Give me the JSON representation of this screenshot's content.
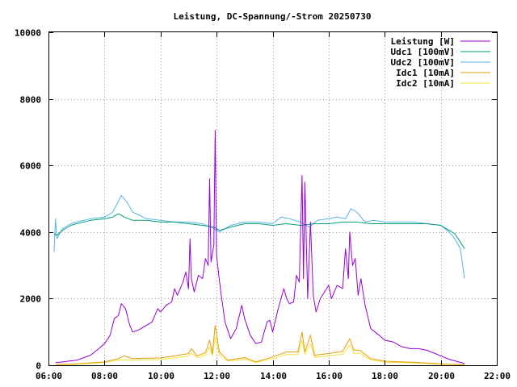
{
  "chart_data": {
    "type": "line",
    "title": "Leistung, DC-Spannung/-Strom 20250730",
    "xlabel": "",
    "ylabel": "",
    "x_ticks": [
      "06:00",
      "08:00",
      "10:00",
      "12:00",
      "14:00",
      "16:00",
      "18:00",
      "20:00",
      "22:00"
    ],
    "y_ticks": [
      "0",
      "2000",
      "4000",
      "6000",
      "8000",
      "10000"
    ],
    "xlim": [
      6,
      22
    ],
    "ylim": [
      0,
      10000
    ],
    "grid": true,
    "legend_position": "top-right",
    "series": [
      {
        "name": "Leistung [W]",
        "color": "#9400d3",
        "points": [
          [
            6.25,
            80
          ],
          [
            6.5,
            100
          ],
          [
            7,
            150
          ],
          [
            7.5,
            300
          ],
          [
            7.8,
            500
          ],
          [
            8,
            650
          ],
          [
            8.2,
            900
          ],
          [
            8.35,
            1400
          ],
          [
            8.5,
            1500
          ],
          [
            8.6,
            1850
          ],
          [
            8.75,
            1700
          ],
          [
            8.9,
            1200
          ],
          [
            9,
            1000
          ],
          [
            9.2,
            1050
          ],
          [
            9.5,
            1200
          ],
          [
            9.7,
            1300
          ],
          [
            9.9,
            1700
          ],
          [
            10,
            1600
          ],
          [
            10.2,
            1800
          ],
          [
            10.4,
            1900
          ],
          [
            10.5,
            2300
          ],
          [
            10.6,
            2100
          ],
          [
            10.8,
            2500
          ],
          [
            10.9,
            2800
          ],
          [
            11.0,
            2300
          ],
          [
            11.05,
            3800
          ],
          [
            11.1,
            2600
          ],
          [
            11.2,
            2200
          ],
          [
            11.35,
            2700
          ],
          [
            11.5,
            2600
          ],
          [
            11.6,
            3200
          ],
          [
            11.7,
            3000
          ],
          [
            11.75,
            5600
          ],
          [
            11.8,
            3100
          ],
          [
            11.9,
            3600
          ],
          [
            11.95,
            7050
          ],
          [
            12.0,
            3300
          ],
          [
            12.05,
            2900
          ],
          [
            12.15,
            2200
          ],
          [
            12.3,
            1300
          ],
          [
            12.5,
            800
          ],
          [
            12.7,
            1100
          ],
          [
            12.9,
            1800
          ],
          [
            13.0,
            1400
          ],
          [
            13.2,
            900
          ],
          [
            13.4,
            650
          ],
          [
            13.6,
            700
          ],
          [
            13.8,
            1300
          ],
          [
            13.9,
            1350
          ],
          [
            14.0,
            1000
          ],
          [
            14.2,
            1700
          ],
          [
            14.4,
            2300
          ],
          [
            14.5,
            2000
          ],
          [
            14.6,
            1850
          ],
          [
            14.75,
            1900
          ],
          [
            14.85,
            2700
          ],
          [
            14.95,
            2500
          ],
          [
            15.05,
            5700
          ],
          [
            15.1,
            2600
          ],
          [
            15.15,
            5500
          ],
          [
            15.25,
            2000
          ],
          [
            15.35,
            4300
          ],
          [
            15.45,
            2100
          ],
          [
            15.55,
            1600
          ],
          [
            15.7,
            2000
          ],
          [
            15.85,
            2200
          ],
          [
            16.0,
            2400
          ],
          [
            16.1,
            2000
          ],
          [
            16.3,
            2400
          ],
          [
            16.5,
            2300
          ],
          [
            16.6,
            3500
          ],
          [
            16.7,
            2600
          ],
          [
            16.75,
            4000
          ],
          [
            16.85,
            3000
          ],
          [
            16.95,
            3200
          ],
          [
            17.05,
            2100
          ],
          [
            17.15,
            2600
          ],
          [
            17.3,
            1800
          ],
          [
            17.5,
            1100
          ],
          [
            17.8,
            900
          ],
          [
            18.0,
            750
          ],
          [
            18.3,
            700
          ],
          [
            18.6,
            560
          ],
          [
            18.9,
            500
          ],
          [
            19.2,
            500
          ],
          [
            19.5,
            450
          ],
          [
            19.8,
            350
          ],
          [
            20.0,
            280
          ],
          [
            20.3,
            180
          ],
          [
            20.6,
            110
          ],
          [
            20.85,
            50
          ]
        ]
      },
      {
        "name": "Udc1 [100mV]",
        "color": "#009e73",
        "points": [
          [
            6.2,
            3950
          ],
          [
            6.3,
            3900
          ],
          [
            6.5,
            4050
          ],
          [
            6.8,
            4200
          ],
          [
            7,
            4250
          ],
          [
            7.5,
            4350
          ],
          [
            8,
            4400
          ],
          [
            8.3,
            4450
          ],
          [
            8.5,
            4550
          ],
          [
            8.7,
            4450
          ],
          [
            9,
            4350
          ],
          [
            9.5,
            4350
          ],
          [
            10,
            4300
          ],
          [
            10.5,
            4300
          ],
          [
            11,
            4250
          ],
          [
            11.5,
            4200
          ],
          [
            11.9,
            4150
          ],
          [
            12.1,
            4050
          ],
          [
            12.5,
            4150
          ],
          [
            13,
            4250
          ],
          [
            13.5,
            4250
          ],
          [
            14,
            4200
          ],
          [
            14.5,
            4250
          ],
          [
            15,
            4200
          ],
          [
            15.5,
            4250
          ],
          [
            16,
            4250
          ],
          [
            16.5,
            4300
          ],
          [
            17,
            4300
          ],
          [
            17.5,
            4250
          ],
          [
            18,
            4250
          ],
          [
            18.5,
            4250
          ],
          [
            19,
            4250
          ],
          [
            19.5,
            4250
          ],
          [
            20,
            4200
          ],
          [
            20.3,
            4050
          ],
          [
            20.5,
            3950
          ],
          [
            20.7,
            3700
          ],
          [
            20.85,
            3500
          ]
        ]
      },
      {
        "name": "Udc2 [100mV]",
        "color": "#56b4e9",
        "points": [
          [
            6.2,
            3400
          ],
          [
            6.25,
            4400
          ],
          [
            6.3,
            3800
          ],
          [
            6.5,
            4100
          ],
          [
            6.8,
            4250
          ],
          [
            7,
            4300
          ],
          [
            7.5,
            4400
          ],
          [
            8,
            4450
          ],
          [
            8.3,
            4600
          ],
          [
            8.6,
            5100
          ],
          [
            8.8,
            4900
          ],
          [
            9,
            4600
          ],
          [
            9.5,
            4400
          ],
          [
            10,
            4350
          ],
          [
            10.5,
            4300
          ],
          [
            11,
            4300
          ],
          [
            11.5,
            4250
          ],
          [
            11.9,
            4100
          ],
          [
            12.1,
            4000
          ],
          [
            12.5,
            4200
          ],
          [
            13,
            4300
          ],
          [
            13.5,
            4300
          ],
          [
            14,
            4250
          ],
          [
            14.3,
            4450
          ],
          [
            14.6,
            4400
          ],
          [
            15,
            4300
          ],
          [
            15.3,
            4150
          ],
          [
            15.6,
            4350
          ],
          [
            16,
            4400
          ],
          [
            16.3,
            4450
          ],
          [
            16.6,
            4400
          ],
          [
            16.8,
            4700
          ],
          [
            17.0,
            4600
          ],
          [
            17.3,
            4300
          ],
          [
            17.6,
            4350
          ],
          [
            18,
            4300
          ],
          [
            18.5,
            4300
          ],
          [
            19,
            4300
          ],
          [
            19.5,
            4250
          ],
          [
            20,
            4200
          ],
          [
            20.3,
            4000
          ],
          [
            20.5,
            3800
          ],
          [
            20.7,
            3500
          ],
          [
            20.85,
            2600
          ]
        ]
      },
      {
        "name": "Idc1 [10mA]",
        "color": "#e69f00",
        "points": [
          [
            6.25,
            20
          ],
          [
            7,
            40
          ],
          [
            8,
            100
          ],
          [
            8.5,
            200
          ],
          [
            8.7,
            280
          ],
          [
            9,
            200
          ],
          [
            10,
            220
          ],
          [
            10.5,
            280
          ],
          [
            11,
            350
          ],
          [
            11.1,
            500
          ],
          [
            11.3,
            280
          ],
          [
            11.6,
            380
          ],
          [
            11.75,
            750
          ],
          [
            11.85,
            350
          ],
          [
            11.95,
            1200
          ],
          [
            12.1,
            400
          ],
          [
            12.4,
            150
          ],
          [
            13,
            230
          ],
          [
            13.4,
            100
          ],
          [
            14,
            250
          ],
          [
            14.5,
            400
          ],
          [
            14.9,
            400
          ],
          [
            15.05,
            1000
          ],
          [
            15.15,
            400
          ],
          [
            15.35,
            900
          ],
          [
            15.5,
            300
          ],
          [
            16,
            350
          ],
          [
            16.5,
            420
          ],
          [
            16.75,
            800
          ],
          [
            16.9,
            450
          ],
          [
            17.1,
            450
          ],
          [
            17.5,
            200
          ],
          [
            18,
            120
          ],
          [
            19,
            90
          ],
          [
            20,
            40
          ],
          [
            20.85,
            10
          ]
        ]
      },
      {
        "name": "Idc2 [10mA]",
        "color": "#f0e442",
        "points": [
          [
            6.25,
            10
          ],
          [
            7,
            30
          ],
          [
            8,
            80
          ],
          [
            8.5,
            160
          ],
          [
            9,
            150
          ],
          [
            10,
            170
          ],
          [
            10.5,
            220
          ],
          [
            11,
            270
          ],
          [
            11.1,
            380
          ],
          [
            11.3,
            220
          ],
          [
            11.6,
            300
          ],
          [
            11.75,
            550
          ],
          [
            11.85,
            280
          ],
          [
            11.95,
            850
          ],
          [
            12.1,
            300
          ],
          [
            12.4,
            120
          ],
          [
            13,
            180
          ],
          [
            13.4,
            80
          ],
          [
            14,
            200
          ],
          [
            14.5,
            320
          ],
          [
            14.9,
            320
          ],
          [
            15.05,
            750
          ],
          [
            15.15,
            320
          ],
          [
            15.35,
            650
          ],
          [
            15.5,
            240
          ],
          [
            16,
            280
          ],
          [
            16.5,
            330
          ],
          [
            16.75,
            600
          ],
          [
            16.9,
            350
          ],
          [
            17.1,
            360
          ],
          [
            17.5,
            160
          ],
          [
            18,
            90
          ],
          [
            19,
            70
          ],
          [
            20,
            30
          ],
          [
            20.85,
            5
          ]
        ]
      }
    ]
  }
}
